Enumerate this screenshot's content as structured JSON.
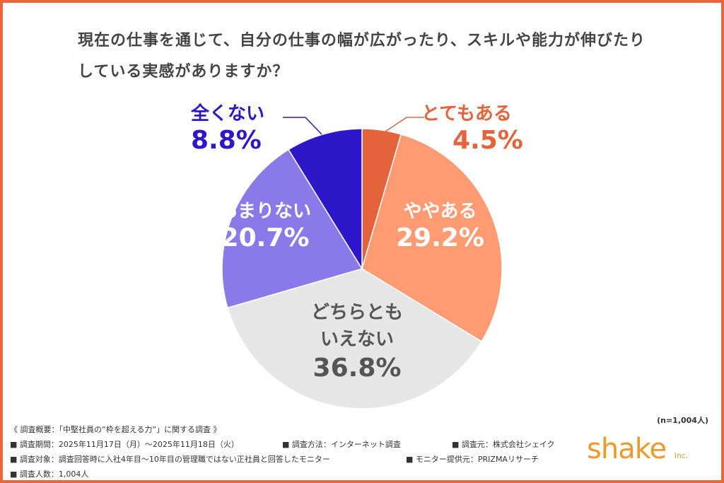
{
  "chart_data": {
    "type": "pie",
    "title": "現在の仕事を通じて、自分の仕事の幅が広がったり、スキルや能力が伸びたりしている実感がありますか？",
    "start": "top",
    "direction": "clockwise",
    "slices": [
      {
        "label": "とてもある",
        "value": 4.5,
        "display": "4.5%",
        "color": "#e5633a"
      },
      {
        "label": "ややある",
        "value": 29.2,
        "display": "29.2%",
        "color": "#ff9b72"
      },
      {
        "label": "どちらともいえない",
        "value": 36.8,
        "display": "36.8%",
        "color": "#e6e6e6"
      },
      {
        "label": "あまりない",
        "value": 20.7,
        "display": "20.7%",
        "color": "#8979e9"
      },
      {
        "label": "全くない",
        "value": 8.8,
        "display": "8.8%",
        "color": "#2d17c9"
      }
    ],
    "sample": "(n=1,004人)"
  },
  "footer": {
    "overview": "《 調査概要：「中堅社員の“枠を超える力”」に関する調査 》",
    "period": "■ 調査期間：2025年11月17日（月）～2025年11月18日（火）",
    "method": "■ 調査方法：インターネット調査",
    "source": "■ 調査元：株式会社シェイク",
    "target": "■ 調査対象：調査回答時に入社4年目～10年目の管理職ではない正社員と回答したモニター",
    "provider": "■ モニター提供元：PRIZMAリサーチ",
    "count": "■ 調査人数：1,004人"
  },
  "logo": {
    "text": "shake",
    "suffix": "Inc."
  },
  "colors": {
    "border": "#e8673a"
  }
}
